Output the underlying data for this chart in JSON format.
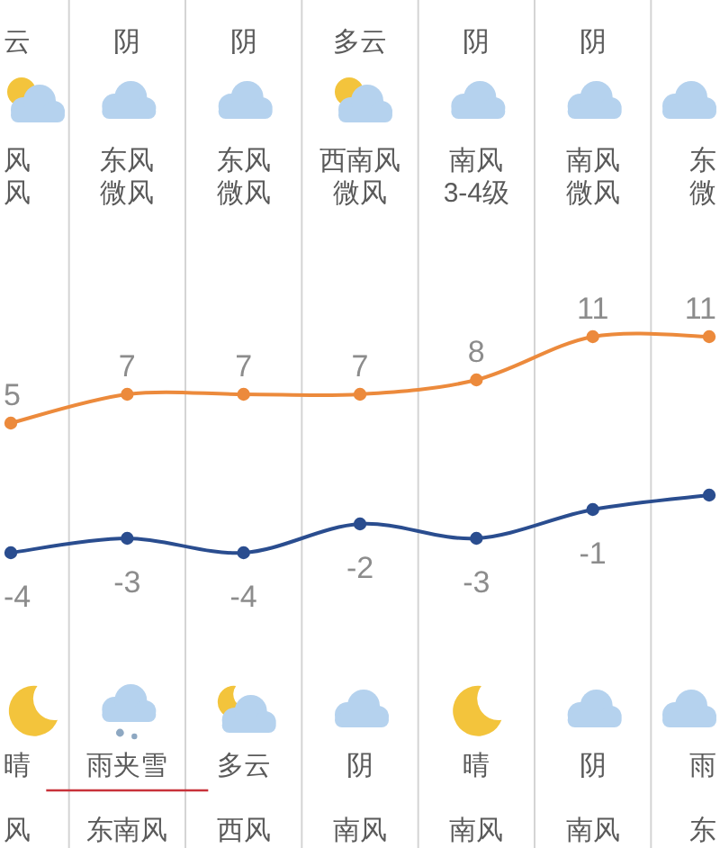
{
  "chart_data": {
    "type": "line",
    "categories": [
      "晴",
      "雨夹雪",
      "多云",
      "阴",
      "晴",
      "阴",
      "雨"
    ],
    "series": [
      {
        "color": "#ec8a3c",
        "values": [
          5,
          7,
          7,
          7,
          8,
          11,
          11
        ],
        "value_labels": [
          "5",
          "7",
          "7",
          "7",
          "8",
          "11",
          "11"
        ]
      },
      {
        "color": "#2a4d8f",
        "values": [
          -4,
          -3,
          -4,
          -2,
          -3,
          -1,
          0
        ],
        "value_labels": [
          "-4",
          "-3",
          "-4",
          "-2",
          "-3",
          "-1",
          null
        ]
      }
    ],
    "marker": "circle",
    "grid": "x",
    "annotations": [
      "风",
      "东风",
      "东风",
      "西南风",
      "南风",
      "南风",
      "东",
      "风",
      "微风",
      "微风",
      "微风",
      "3-4级",
      "微风",
      "微",
      "风",
      "东南风",
      "西风",
      "南风",
      "南风",
      "南风",
      "东",
      "云",
      "阴",
      "阴",
      "多云",
      "阴",
      "阴"
    ]
  }
}
